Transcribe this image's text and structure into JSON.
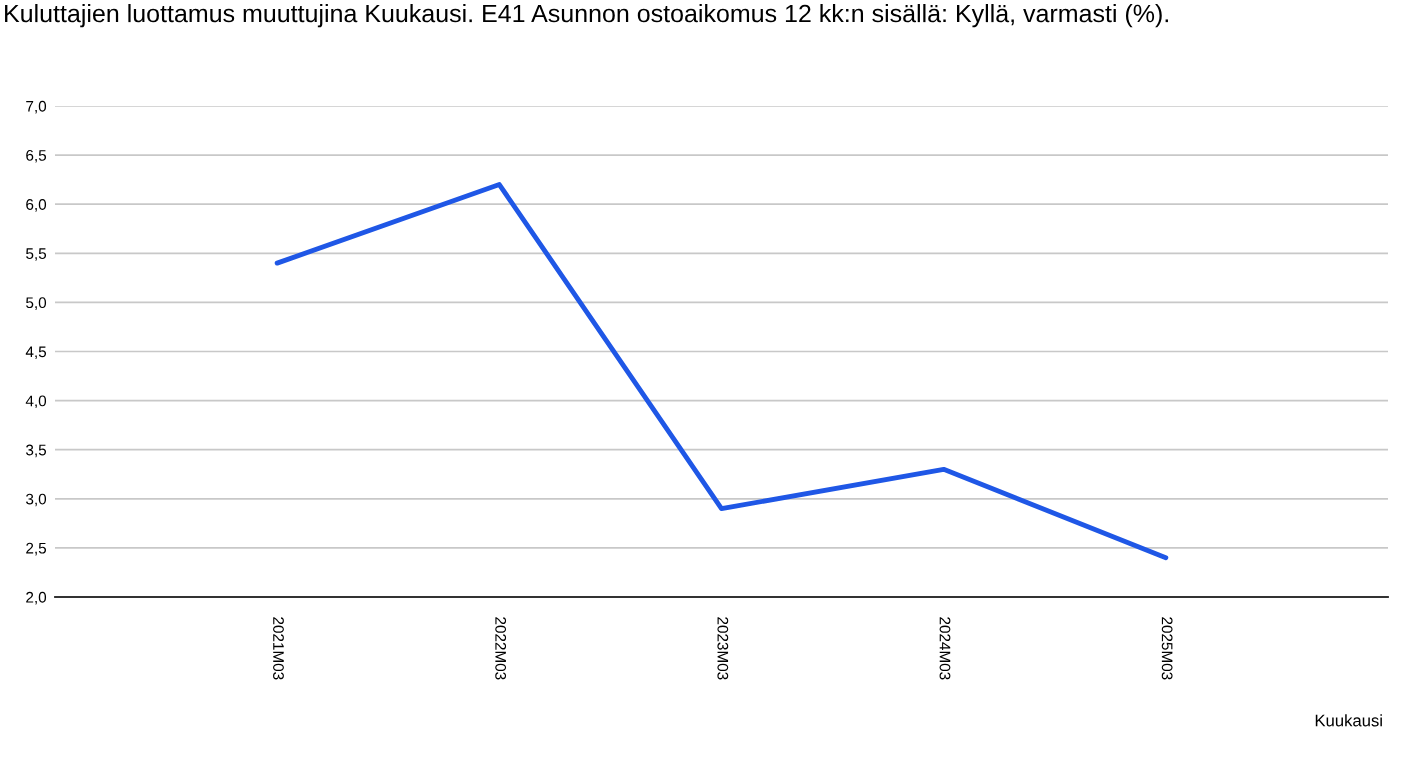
{
  "chart_data": {
    "type": "line",
    "title": "Kuluttajien luottamus muuttujina Kuukausi. E41 Asunnon ostoaikomus 12 kk:n sisällä: Kyllä, varmasti (%).",
    "xlabel": "Kuukausi",
    "categories": [
      "2021M03",
      "2022M03",
      "2023M03",
      "2024M03",
      "2025M03"
    ],
    "series": [
      {
        "color": "#1f57e6",
        "values": [
          5.4,
          6.2,
          2.9,
          3.3,
          2.4
        ]
      }
    ],
    "ylim": [
      2.0,
      7.0
    ],
    "yticks": [
      {
        "value": 2.0,
        "label": "2,0"
      },
      {
        "value": 2.5,
        "label": "2,5"
      },
      {
        "value": 3.0,
        "label": "3,0"
      },
      {
        "value": 3.5,
        "label": "3,5"
      },
      {
        "value": 4.0,
        "label": "4,0"
      },
      {
        "value": 4.5,
        "label": "4,5"
      },
      {
        "value": 5.0,
        "label": "5,0"
      },
      {
        "value": 5.5,
        "label": "5,5"
      },
      {
        "value": 6.0,
        "label": "6,0"
      },
      {
        "value": 6.5,
        "label": "6,5"
      },
      {
        "value": 7.0,
        "label": "7,0"
      }
    ],
    "grid": "y",
    "legend": false,
    "marker": "none",
    "line_style": "solid"
  }
}
